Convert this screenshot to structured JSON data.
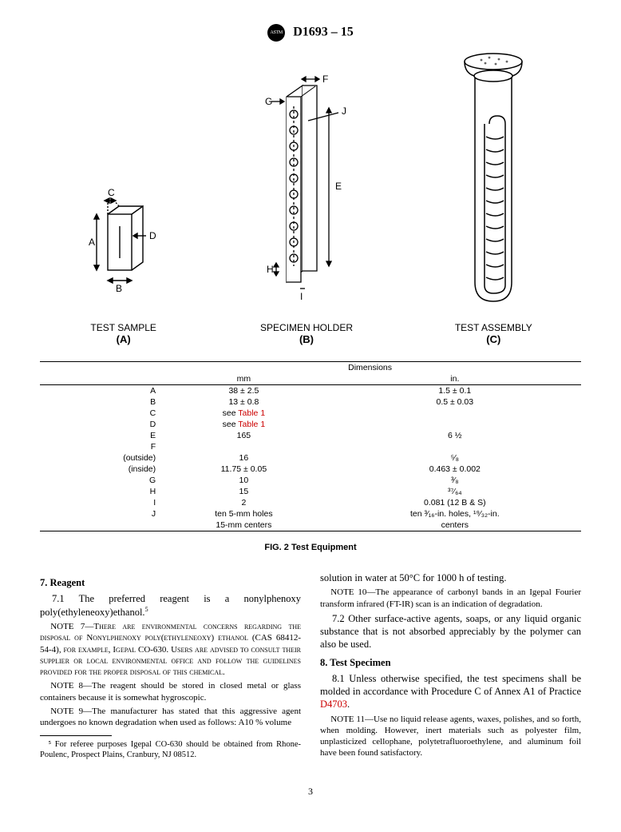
{
  "header": {
    "doc_id": "D1693 – 15"
  },
  "figures": {
    "a_label": "TEST SAMPLE",
    "a_letter": "(A)",
    "b_label": "SPECIMEN HOLDER",
    "b_letter": "(B)",
    "c_label": "TEST ASSEMBLY",
    "c_letter": "(C)"
  },
  "dim_table": {
    "title": "Dimensions",
    "col_mm": "mm",
    "col_in": "in.",
    "rows": [
      {
        "k": "A",
        "mm": "38 ± 2.5",
        "in": "1.5 ± 0.1"
      },
      {
        "k": "B",
        "mm": "13 ± 0.8",
        "in": "0.5 ± 0.03"
      },
      {
        "k": "C",
        "mm": "see Table 1",
        "in": "",
        "link": true
      },
      {
        "k": "D",
        "mm": "see Table 1",
        "in": "",
        "link": true
      },
      {
        "k": "E",
        "mm": "165",
        "in": "6 ½"
      },
      {
        "k": "F",
        "mm": "",
        "in": ""
      },
      {
        "k": "(outside)",
        "mm": "16",
        "in": "⁵⁄₈"
      },
      {
        "k": "(inside)",
        "mm": "11.75 ± 0.05",
        "in": "0.463 ± 0.002"
      },
      {
        "k": "G",
        "mm": "10",
        "in": "³⁄₈"
      },
      {
        "k": "H",
        "mm": "15",
        "in": "³⁷⁄₆₄"
      },
      {
        "k": "I",
        "mm": "2",
        "in": "0.081 (12 B & S)"
      },
      {
        "k": "J",
        "mm": "ten 5-mm holes",
        "in": "ten ³⁄₁₆-in. holes, ¹⁹⁄₃₂-in."
      },
      {
        "k": "",
        "mm": "15-mm centers",
        "in": "centers"
      }
    ]
  },
  "fig_caption": "FIG. 2 Test Equipment",
  "section7": {
    "head": "7. Reagent",
    "p71": "7.1 The preferred reagent is a nonylphenoxy poly(ethyleneoxy)ethanol.",
    "fn5_mark": "5",
    "note7": "NOTE 7—There are environmental concerns regarding the disposal of Nonylphenoxy poly(ethyleneoxy) ethanol (CAS 68412-54-4), for example, Igepal CO-630. Users are advised to consult their supplier or local environmental office and follow the guidelines provided for the proper disposal of this chemical.",
    "note8": "NOTE 8—The reagent should be stored in closed metal or glass containers because it is somewhat hygroscopic.",
    "note9": "NOTE 9—The manufacturer has stated that this aggressive agent undergoes no known degradation when used as follows: A10 % volume",
    "cont": "solution in water at 50°C for 1000 h of testing.",
    "note10": "NOTE 10—The appearance of carbonyl bands in an Igepal Fourier transform infrared (FT-IR) scan is an indication of degradation.",
    "p72": "7.2 Other surface-active agents, soaps, or any liquid organic substance that is not absorbed appreciably by the polymer can also be used."
  },
  "section8": {
    "head": "8. Test Specimen",
    "p81_a": "8.1 Unless otherwise specified, the test specimens shall be molded in accordance with Procedure C of Annex A1 of Practice ",
    "p81_link": "D4703",
    "p81_b": ".",
    "note11": "NOTE 11—Use no liquid release agents, waxes, polishes, and so forth, when molding. However, inert materials such as polyester film, unplasticized cellophane, polytetrafluoroethylene, and aluminum foil have been found satisfactory."
  },
  "footnote5": "⁵ For referee purposes Igepal CO-630 should be obtained from Rhone-Poulenc, Prospect Plains, Cranbury, NJ 08512.",
  "page_num": "3",
  "colors": {
    "link": "#c00000",
    "text": "#000000"
  }
}
